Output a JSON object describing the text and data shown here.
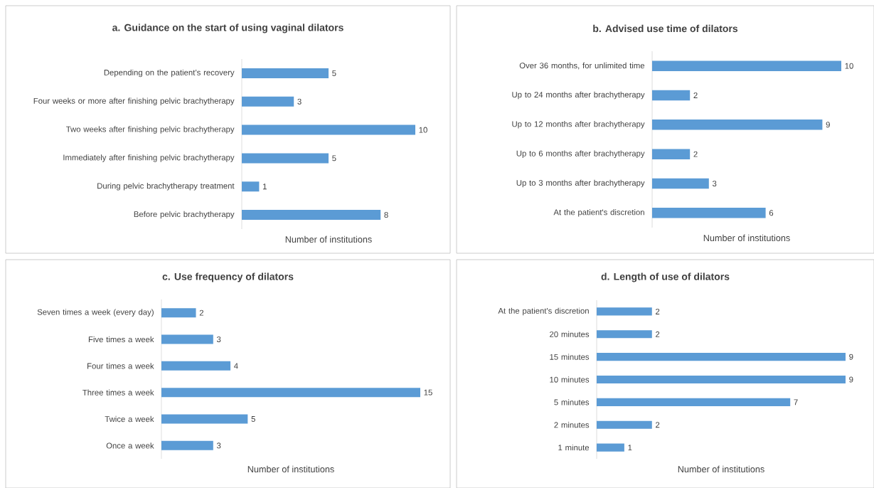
{
  "chart_data": [
    {
      "type": "bar",
      "orientation": "horizontal",
      "title": "a. Guidance on the start of using vaginal dilators",
      "xlabel": "Number of institutions",
      "categories": [
        "Depending on the patient’s recovery",
        "Four weeks or more after finishing pelvic brachytherapy",
        "Two weeks after finishing pelvic brachytherapy",
        "Immediately after finishing pelvic brachytherapy",
        "During pelvic brachytherapy treatment",
        "Before pelvic brachytherapy"
      ],
      "values": [
        5,
        3,
        10,
        5,
        1,
        8
      ],
      "color": "#5b9bd5",
      "data_labels": true
    },
    {
      "type": "bar",
      "orientation": "horizontal",
      "title": "b. Advised use time of dilators",
      "xlabel": "Number of institutions",
      "categories": [
        "Over 36 months, for unlimited time",
        "Up to 24 months after brachytherapy",
        "Up to 12 months after brachytherapy",
        "Up to 6 months after brachytherapy",
        "Up to 3 months after brachytherapy",
        "At the patient's discretion"
      ],
      "values": [
        10,
        2,
        9,
        2,
        3,
        6
      ],
      "color": "#5b9bd5",
      "data_labels": true
    },
    {
      "type": "bar",
      "orientation": "horizontal",
      "title": "c. Use frequency of dilators",
      "xlabel": "Number of institutions",
      "categories": [
        "Seven times a week (every day)",
        "Five times a week",
        "Four times a week",
        "Three times a week",
        "Twice a week",
        "Once a week"
      ],
      "values": [
        2,
        3,
        4,
        15,
        5,
        3
      ],
      "color": "#5b9bd5",
      "data_labels": true
    },
    {
      "type": "bar",
      "orientation": "horizontal",
      "title": "d. Length of use of dilators",
      "xlabel": "Number of institutions",
      "categories": [
        "At the patient's discretion",
        "20 minutes",
        "15 minutes",
        "10 minutes",
        "5 minutes",
        "2 minutes",
        "1 minute"
      ],
      "values": [
        2,
        2,
        9,
        9,
        7,
        2,
        1
      ],
      "color": "#5b9bd5",
      "data_labels": true
    }
  ]
}
